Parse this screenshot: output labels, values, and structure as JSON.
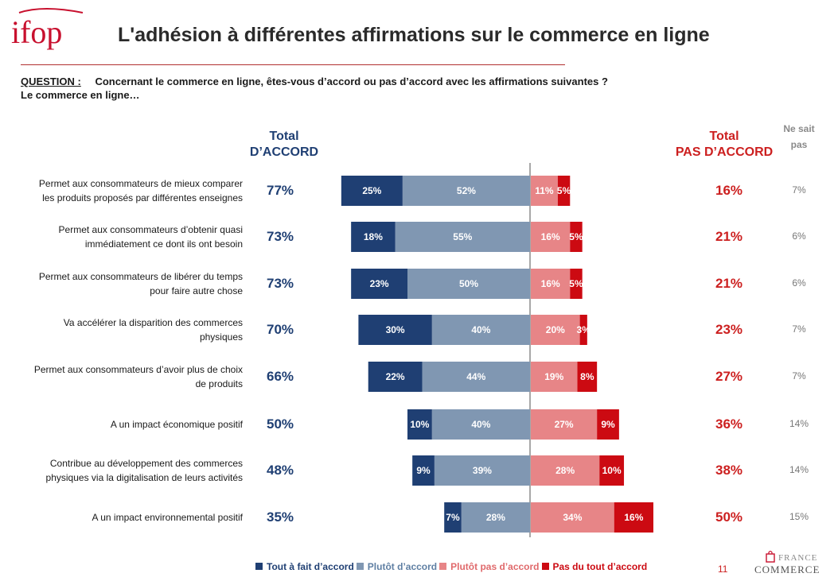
{
  "header": {
    "logo_text": "ifop",
    "title": "L'adhésion à différentes affirmations sur le commerce en ligne"
  },
  "question": {
    "label": "QUESTION :",
    "text": "Concernant le commerce en ligne, êtes-vous d’accord ou pas d’accord avec les affirmations suivantes ?",
    "subtext": "Le commerce en ligne…"
  },
  "columns": {
    "total_agree_line1": "Total",
    "total_agree_line2": "D’ACCORD",
    "total_disagree_line1": "Total",
    "total_disagree_line2": "PAS D’ACCORD",
    "ns_line1": "Ne sait",
    "ns_line2": "pas"
  },
  "chart_data": {
    "type": "bar",
    "orientation": "horizontal-diverging",
    "categories": [
      [
        "Permet aux consommateurs de mieux comparer",
        "les produits proposés par différentes enseignes"
      ],
      [
        "Permet aux consommateurs d’obtenir quasi",
        "immédiatement ce dont ils ont besoin"
      ],
      [
        "Permet aux consommateurs de libérer du temps",
        "pour faire autre chose"
      ],
      [
        "Va accélérer la disparition des commerces",
        "physiques"
      ],
      [
        "Permet aux consommateurs d’avoir plus de choix",
        "de produits"
      ],
      [
        "A un impact économique positif"
      ],
      [
        "Contribue au développement des commerces",
        "physiques via la digitalisation de leurs activités"
      ],
      [
        "A un impact environnemental positif"
      ]
    ],
    "series": [
      {
        "name": "Tout à fait d’accord",
        "color": "#1f3f73",
        "side": "agree",
        "values": [
          25,
          18,
          23,
          30,
          22,
          10,
          9,
          7
        ]
      },
      {
        "name": "Plutôt d’accord",
        "color": "#8097b2",
        "side": "agree",
        "values": [
          52,
          55,
          50,
          40,
          44,
          40,
          39,
          28
        ]
      },
      {
        "name": "Plutôt pas d’accord",
        "color": "#e78587",
        "side": "disagree",
        "values": [
          11,
          16,
          16,
          20,
          19,
          27,
          28,
          34
        ]
      },
      {
        "name": "Pas du tout d’accord",
        "color": "#cc0a12",
        "side": "disagree",
        "values": [
          5,
          5,
          5,
          3,
          8,
          9,
          10,
          16
        ]
      }
    ],
    "total_agree": [
      "77%",
      "73%",
      "73%",
      "70%",
      "66%",
      "50%",
      "48%",
      "35%"
    ],
    "total_disagree": [
      "16%",
      "21%",
      "21%",
      "23%",
      "27%",
      "36%",
      "38%",
      "50%"
    ],
    "ne_sait_pas": [
      "7%",
      "6%",
      "6%",
      "7%",
      "7%",
      "14%",
      "14%",
      "15%"
    ],
    "legend_position": "bottom",
    "grid": false
  },
  "footer": {
    "page_number": "11",
    "brand_top": "FRANCE",
    "brand_bottom": "COMMERCE"
  },
  "colors": {
    "agree_total": "#1f3f73",
    "disagree_total": "#cc1f1f",
    "accent_rule": "#b03030"
  }
}
